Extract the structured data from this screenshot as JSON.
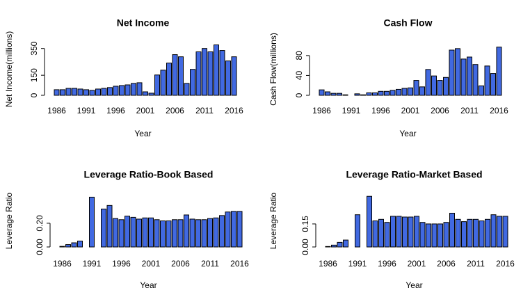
{
  "chart_data": [
    {
      "type": "bar",
      "title": "Net Income",
      "xlabel": "Year",
      "ylabel": "Net Income(millions)",
      "color": "#4169e1",
      "categories": [
        "1986",
        null,
        null,
        null,
        null,
        "1991",
        null,
        null,
        null,
        null,
        "1996",
        null,
        null,
        null,
        null,
        "2001",
        null,
        null,
        null,
        null,
        "2006",
        null,
        null,
        null,
        null,
        "2011",
        null,
        null,
        null,
        null,
        "2016"
      ],
      "values": [
        42,
        42,
        52,
        52,
        47,
        42,
        37,
        47,
        52,
        58,
        68,
        73,
        78,
        89,
        94,
        26,
        16,
        152,
        188,
        241,
        304,
        288,
        89,
        194,
        325,
        350,
        325,
        377,
        335,
        257,
        288
      ],
      "ylim": [
        0,
        390
      ],
      "yticks": [
        0,
        150,
        350
      ]
    },
    {
      "type": "bar",
      "title": "Cash Flow",
      "xlabel": "Year",
      "ylabel": "Cash Flow(millions)",
      "color": "#4169e1",
      "categories": [
        "1986",
        null,
        null,
        null,
        null,
        "1991",
        null,
        null,
        null,
        null,
        "1996",
        null,
        null,
        null,
        null,
        "2001",
        null,
        null,
        null,
        null,
        "2006",
        null,
        null,
        null,
        null,
        "2011",
        null,
        null,
        null,
        null,
        "2016"
      ],
      "values": [
        11,
        7,
        4,
        4,
        1,
        0,
        3,
        1,
        5,
        5,
        8,
        8,
        10,
        12,
        14,
        15,
        30,
        17,
        52,
        39,
        30,
        36,
        91,
        94,
        73,
        77,
        62,
        19,
        59,
        44,
        97
      ],
      "ylim": [
        0,
        105
      ],
      "yticks": [
        0,
        40,
        80
      ]
    },
    {
      "type": "bar",
      "title": "Leverage Ratio-Book Based",
      "xlabel": "Year",
      "ylabel": "Leverage Ratio",
      "color": "#4169e1",
      "categories": [
        "1986",
        null,
        null,
        null,
        null,
        "1991",
        null,
        null,
        null,
        null,
        "1996",
        null,
        null,
        null,
        null,
        "2001",
        null,
        null,
        null,
        null,
        "2006",
        null,
        null,
        null,
        null,
        "2011",
        null,
        null,
        null,
        null,
        "2016"
      ],
      "values": [
        0.005,
        0.02,
        0.035,
        0.05,
        null,
        0.42,
        null,
        0.32,
        0.35,
        0.24,
        0.23,
        0.26,
        0.25,
        0.235,
        0.245,
        0.245,
        0.23,
        0.22,
        0.22,
        0.23,
        0.23,
        0.27,
        0.235,
        0.23,
        0.23,
        0.24,
        0.245,
        0.265,
        0.295,
        0.3,
        0.3
      ],
      "ylim": [
        0,
        0.44
      ],
      "yticks": [
        {
          "value": 0,
          "label": "0.00"
        },
        {
          "value": 0.2,
          "label": "0.20"
        }
      ]
    },
    {
      "type": "bar",
      "title": "Leverage Ratio-Market Based",
      "xlabel": "Year",
      "ylabel": "Leverage Ratio",
      "color": "#4169e1",
      "categories": [
        "1986",
        null,
        null,
        null,
        null,
        "1991",
        null,
        null,
        null,
        null,
        "1996",
        null,
        null,
        null,
        null,
        "2001",
        null,
        null,
        null,
        null,
        "2006",
        null,
        null,
        null,
        null,
        "2011",
        null,
        null,
        null,
        null,
        "2016"
      ],
      "values": [
        0.003,
        0.012,
        0.03,
        0.045,
        null,
        0.21,
        null,
        0.33,
        0.17,
        0.18,
        0.16,
        0.2,
        0.2,
        0.195,
        0.195,
        0.2,
        0.16,
        0.15,
        0.15,
        0.15,
        0.16,
        0.22,
        0.18,
        0.165,
        0.18,
        0.18,
        0.17,
        0.18,
        0.21,
        0.2,
        0.2
      ],
      "ylim": [
        0,
        0.34
      ],
      "yticks": [
        {
          "value": 0,
          "label": "0.00"
        },
        0.15
      ]
    }
  ]
}
